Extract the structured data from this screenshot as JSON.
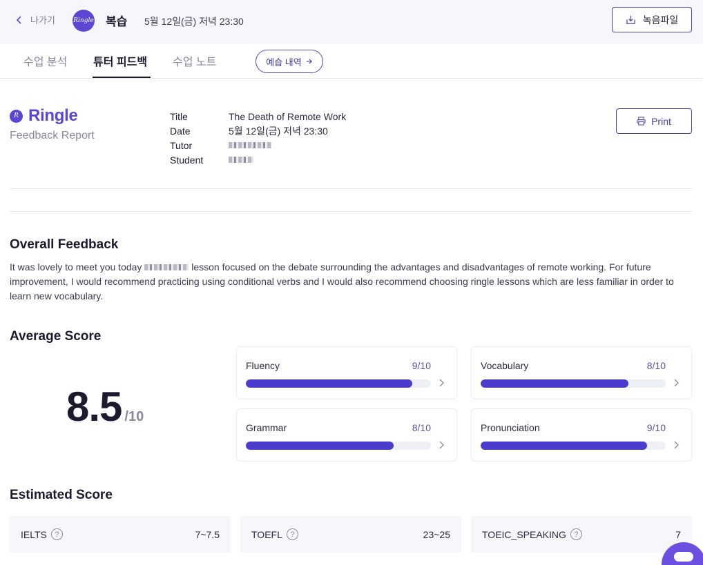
{
  "header": {
    "back_label": "나가기",
    "logo_text": "Ringle",
    "title": "복습",
    "datetime": "5월 12일(금) 저녁 23:30",
    "record_button": "녹음파일"
  },
  "tabs": [
    {
      "label": "수업 분석",
      "active": false
    },
    {
      "label": "튜터 피드백",
      "active": true
    },
    {
      "label": "수업 노트",
      "active": false
    }
  ],
  "prep_pill": "예습 내역",
  "report": {
    "brand": "Ringle",
    "subtitle": "Feedback Report",
    "meta": {
      "title_key": "Title",
      "title_val": "The Death of Remote Work",
      "date_key": "Date",
      "date_val": "5월 12일(금) 저녁 23:30",
      "tutor_key": "Tutor",
      "student_key": "Student"
    },
    "print_button": "Print"
  },
  "overall": {
    "heading": "Overall Feedback",
    "text_before": "It was lovely to meet you today",
    "text_after": "lesson focused on the debate surrounding the advantages and disadvantages of remote working. For future improvement, I would recommend practicing using conditional verbs and I would also recommend choosing ringle lessons which are less familiar in order to learn new vocabulary."
  },
  "average": {
    "heading": "Average Score",
    "score": "8.5",
    "denominator": "/10",
    "items": [
      {
        "label": "Fluency",
        "score_text": "9/10",
        "value": 9,
        "max": 10
      },
      {
        "label": "Vocabulary",
        "score_text": "8/10",
        "value": 8,
        "max": 10
      },
      {
        "label": "Grammar",
        "score_text": "8/10",
        "value": 8,
        "max": 10
      },
      {
        "label": "Pronunciation",
        "score_text": "9/10",
        "value": 9,
        "max": 10
      }
    ]
  },
  "estimated": {
    "heading": "Estimated Score",
    "items": [
      {
        "label": "IELTS",
        "value": "7~7.5"
      },
      {
        "label": "TOEFL",
        "value": "23~25"
      },
      {
        "label": "TOEIC_SPEAKING",
        "value": "7"
      }
    ]
  },
  "icons": {
    "back": "chevron-left-icon",
    "download": "download-icon",
    "arrow": "arrow-right-icon",
    "print": "printer-icon",
    "help": "question-circle-icon",
    "chevron": "chevron-right-icon",
    "chat": "chat-icon"
  },
  "colors": {
    "accent": "#5c46d3",
    "bar": "#4a3ccd",
    "track": "#efeff6"
  }
}
